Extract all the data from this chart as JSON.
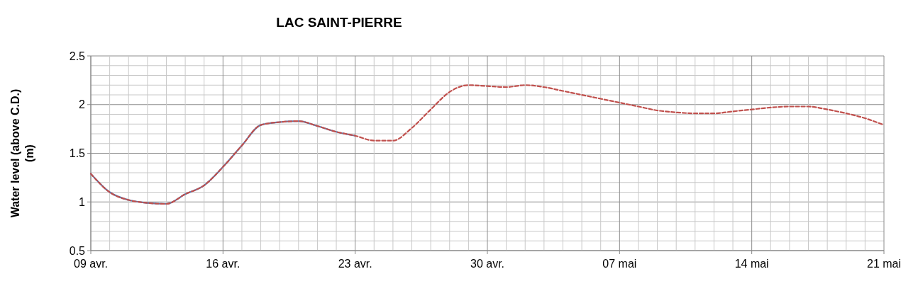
{
  "chart_data": {
    "type": "line",
    "title": "LAC SAINT-PIERRE",
    "ylabel": "Water level (above C.D.) (m)",
    "grid": true,
    "line_style": "solid",
    "marker": "none",
    "xlim": [
      "--04-09",
      "--05-21"
    ],
    "xticks": [
      {
        "value": "--04-09",
        "label": "09 avr."
      },
      {
        "value": "--04-10",
        "label": null
      },
      {
        "value": "--04-11",
        "label": null
      },
      {
        "value": "--04-12",
        "label": null
      },
      {
        "value": "--04-13",
        "label": null
      },
      {
        "value": "--04-14",
        "label": null
      },
      {
        "value": "--04-15",
        "label": null
      },
      {
        "value": "--04-16",
        "label": "16 avr."
      },
      {
        "value": "--04-17",
        "label": null
      },
      {
        "value": "--04-18",
        "label": null
      },
      {
        "value": "--04-19",
        "label": null
      },
      {
        "value": "--04-20",
        "label": null
      },
      {
        "value": "--04-21",
        "label": null
      },
      {
        "value": "--04-22",
        "label": null
      },
      {
        "value": "--04-23",
        "label": "23 avr."
      },
      {
        "value": "--04-24",
        "label": null
      },
      {
        "value": "--04-25",
        "label": null
      },
      {
        "value": "--04-26",
        "label": null
      },
      {
        "value": "--04-27",
        "label": null
      },
      {
        "value": "--04-28",
        "label": null
      },
      {
        "value": "--04-29",
        "label": null
      },
      {
        "value": "--04-30",
        "label": "30 avr."
      },
      {
        "value": "--05-01",
        "label": null
      },
      {
        "value": "--05-02",
        "label": null
      },
      {
        "value": "--05-03",
        "label": null
      },
      {
        "value": "--05-04",
        "label": null
      },
      {
        "value": "--05-05",
        "label": null
      },
      {
        "value": "--05-06",
        "label": null
      },
      {
        "value": "--05-07",
        "label": "07 mai"
      },
      {
        "value": "--05-08",
        "label": null
      },
      {
        "value": "--05-09",
        "label": null
      },
      {
        "value": "--05-10",
        "label": null
      },
      {
        "value": "--05-11",
        "label": null
      },
      {
        "value": "--05-12",
        "label": null
      },
      {
        "value": "--05-13",
        "label": null
      },
      {
        "value": "--05-14",
        "label": "14 mai"
      },
      {
        "value": "--05-15",
        "label": null
      },
      {
        "value": "--05-16",
        "label": null
      },
      {
        "value": "--05-17",
        "label": null
      },
      {
        "value": "--05-18",
        "label": null
      },
      {
        "value": "--05-19",
        "label": null
      },
      {
        "value": "--05-20",
        "label": null
      },
      {
        "value": "--05-21",
        "label": "21 mai"
      }
    ],
    "ylim": [
      0.5,
      2.5
    ],
    "yticks": [
      0.5,
      {
        "value": 0.6,
        "label": null
      },
      {
        "value": 0.7,
        "label": null
      },
      {
        "value": 0.8,
        "label": null
      },
      {
        "value": 0.9,
        "label": null
      },
      1,
      {
        "value": 1.1,
        "label": null
      },
      {
        "value": 1.2,
        "label": null
      },
      {
        "value": 1.3,
        "label": null
      },
      {
        "value": 1.4,
        "label": null
      },
      1.5,
      {
        "value": 1.6,
        "label": null
      },
      {
        "value": 1.7,
        "label": null
      },
      {
        "value": 1.8,
        "label": null
      },
      {
        "value": 1.9,
        "label": null
      },
      2,
      {
        "value": 2.1,
        "label": null
      },
      {
        "value": 2.2,
        "label": null
      },
      {
        "value": 2.3,
        "label": null
      },
      {
        "value": 2.4,
        "label": null
      },
      2.5
    ],
    "series": [
      {
        "color": "#4f81bd",
        "x": [
          "--04-09",
          "--04-10",
          "--04-11",
          "--04-12",
          "--04-13",
          "--04-14",
          "--04-15",
          "--04-16",
          "--04-17",
          "--04-18",
          "--04-19",
          "--04-20",
          "--04-21",
          "--04-22",
          "--04-23"
        ],
        "values": [
          1.29,
          1.1,
          1.02,
          0.99,
          0.98,
          1.08,
          1.17,
          1.36,
          1.58,
          1.79,
          1.82,
          1.83,
          1.78,
          1.72,
          1.68
        ]
      },
      {
        "color": "#c0504d",
        "line_style": "dashed",
        "x": [
          "--04-09",
          "--04-10",
          "--04-11",
          "--04-12",
          "--04-13",
          "--04-14",
          "--04-15",
          "--04-16",
          "--04-17",
          "--04-18",
          "--04-19",
          "--04-20",
          "--04-21",
          "--04-22",
          "--04-23",
          "--04-24",
          "--04-25",
          "--04-26",
          "--04-27",
          "--04-28",
          "--04-29",
          "--04-30",
          "--05-01",
          "--05-02",
          "--05-03",
          "--05-04",
          "--05-05",
          "--05-06",
          "--05-07",
          "--05-08",
          "--05-09",
          "--05-10",
          "--05-11",
          "--05-12",
          "--05-13",
          "--05-14",
          "--05-15",
          "--05-16",
          "--05-17",
          "--05-18",
          "--05-19",
          "--05-20",
          "--05-21"
        ],
        "values": [
          1.29,
          1.1,
          1.02,
          0.99,
          0.98,
          1.08,
          1.17,
          1.36,
          1.58,
          1.79,
          1.82,
          1.83,
          1.78,
          1.72,
          1.68,
          1.63,
          1.63,
          1.76,
          1.95,
          2.13,
          2.2,
          2.19,
          2.18,
          2.2,
          2.18,
          2.14,
          2.1,
          2.06,
          2.02,
          1.98,
          1.94,
          1.92,
          1.91,
          1.91,
          1.93,
          1.95,
          1.97,
          1.98,
          1.98,
          1.95,
          1.91,
          1.86,
          1.79
        ]
      }
    ]
  }
}
